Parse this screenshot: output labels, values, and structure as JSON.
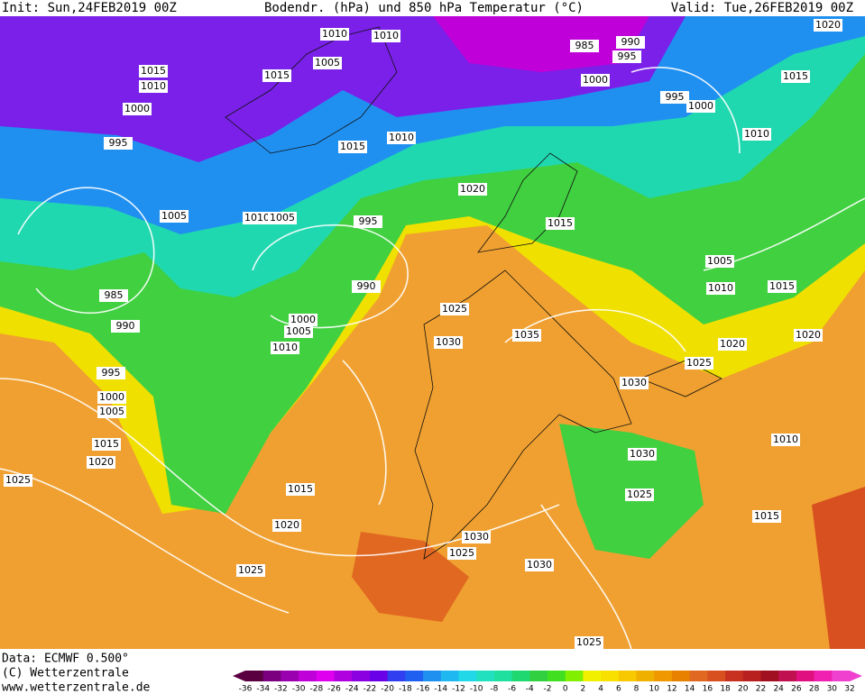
{
  "header": {
    "init": "Init: Sun,24FEB2019 00Z",
    "title": "Bodendr. (hPa) und 850 hPa Temperatur (°C)",
    "valid": "Valid: Tue,26FEB2019 00Z"
  },
  "footer": {
    "data": "Data: ECMWF  0.500°",
    "copyright": "(C) Wetterzentrale",
    "url": "www.wetterzentrale.de"
  },
  "isobars": {
    "labels": [
      "1010",
      "1010",
      "1005",
      "1015",
      "1015",
      "1010",
      "1000",
      "995",
      "985",
      "990",
      "995",
      "1000",
      "995",
      "1000",
      "1020",
      "1015",
      "1010",
      "1015",
      "1010",
      "1020",
      "1005",
      "1010",
      "1005",
      "995",
      "990",
      "985",
      "990",
      "995",
      "1000",
      "1005",
      "1015",
      "1020",
      "1025",
      "1000",
      "1005",
      "1010",
      "1025",
      "1030",
      "1035",
      "1015",
      "1005",
      "1010",
      "1015",
      "1020",
      "1020",
      "1025",
      "1030",
      "1030",
      "1025",
      "1010",
      "1015",
      "1020",
      "1015",
      "1025",
      "1030",
      "1025",
      "1030",
      "1025"
    ]
  },
  "colorbar": {
    "labels": [
      -36,
      -34,
      -32,
      -30,
      -28,
      -26,
      -24,
      -22,
      -20,
      -18,
      -16,
      -14,
      -12,
      -10,
      -8,
      -6,
      -4,
      -2,
      0,
      2,
      4,
      6,
      8,
      10,
      12,
      14,
      16,
      18,
      20,
      22,
      24,
      26,
      28,
      30,
      32
    ],
    "colors": [
      "#5a0040",
      "#7a0080",
      "#9b00b0",
      "#c000d8",
      "#e000f0",
      "#b000e0",
      "#8a00e0",
      "#6a00e8",
      "#3040f0",
      "#2060f0",
      "#2090f0",
      "#20b8f0",
      "#20d8e8",
      "#20e0c0",
      "#20e0a0",
      "#20d870",
      "#30d040",
      "#40e020",
      "#80f000",
      "#f0f000",
      "#f8e000",
      "#f8c800",
      "#f0b000",
      "#f09800",
      "#e88000",
      "#e06820",
      "#d85020",
      "#c83020",
      "#b82020",
      "#a01020",
      "#c01050",
      "#e01080",
      "#f020b0",
      "#f040d0"
    ]
  }
}
